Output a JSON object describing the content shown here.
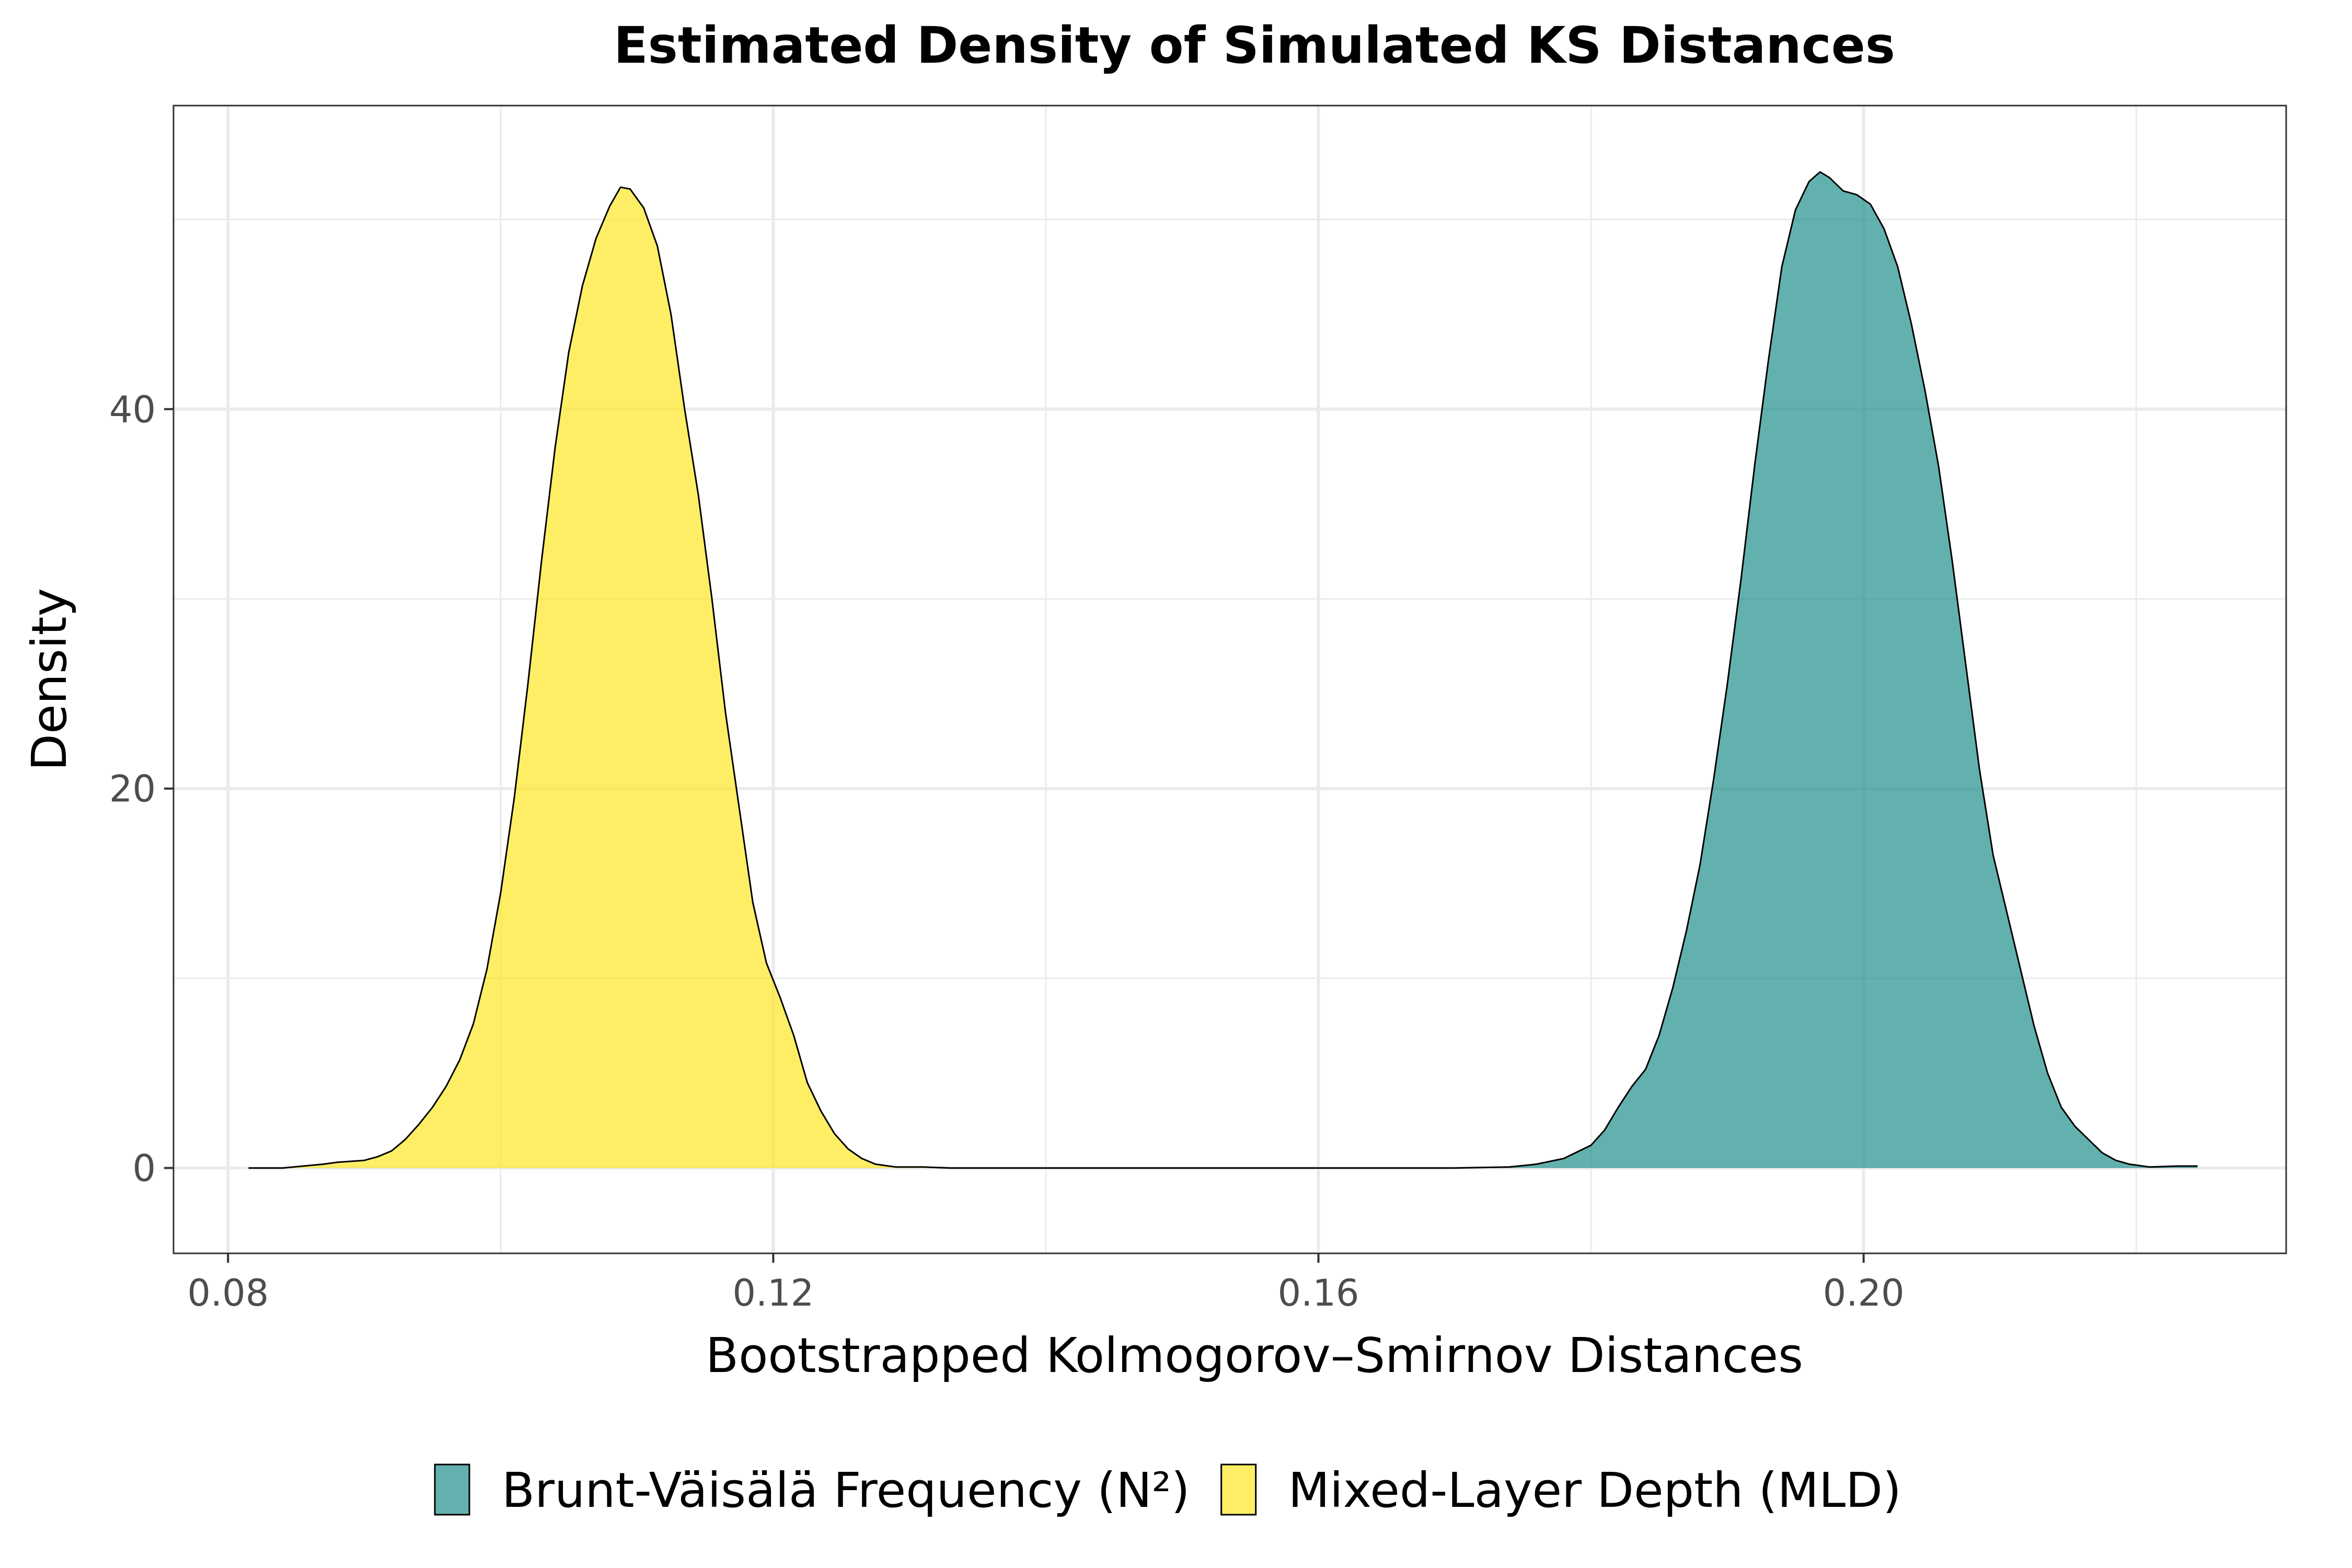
{
  "chart_data": {
    "type": "area",
    "title": "Estimated Density of Simulated KS Distances",
    "xlabel": "Bootstrapped Kolmogorov–Smirnov Distances",
    "ylabel": "Density",
    "xlim": [
      0.076,
      0.231
    ],
    "ylim": [
      -4.5,
      56
    ],
    "x_ticks": [
      0.08,
      0.12,
      0.16,
      0.2
    ],
    "x_tick_labels": [
      "0.08",
      "0.12",
      "0.16",
      "0.20"
    ],
    "y_ticks": [
      0,
      20,
      40
    ],
    "y_tick_labels": [
      "0",
      "20",
      "40"
    ],
    "grid": true,
    "legend_position": "bottom",
    "series": [
      {
        "name": "Brunt-Väisälä Frequency (N²)",
        "color": "#21908C",
        "opacity": 0.7,
        "points": [
          [
            0.17,
            0.0
          ],
          [
            0.174,
            0.05
          ],
          [
            0.176,
            0.2
          ],
          [
            0.178,
            0.5
          ],
          [
            0.18,
            1.2
          ],
          [
            0.181,
            2.0
          ],
          [
            0.182,
            3.2
          ],
          [
            0.183,
            4.3
          ],
          [
            0.184,
            5.2
          ],
          [
            0.185,
            7.0
          ],
          [
            0.186,
            9.5
          ],
          [
            0.187,
            12.5
          ],
          [
            0.188,
            16.0
          ],
          [
            0.189,
            20.5
          ],
          [
            0.19,
            25.5
          ],
          [
            0.191,
            31.0
          ],
          [
            0.192,
            37.0
          ],
          [
            0.193,
            42.5
          ],
          [
            0.194,
            47.5
          ],
          [
            0.195,
            50.5
          ],
          [
            0.196,
            52.0
          ],
          [
            0.1968,
            52.5
          ],
          [
            0.1975,
            52.2
          ],
          [
            0.1985,
            51.5
          ],
          [
            0.1995,
            51.3
          ],
          [
            0.2005,
            50.8
          ],
          [
            0.2015,
            49.5
          ],
          [
            0.2025,
            47.5
          ],
          [
            0.2035,
            44.5
          ],
          [
            0.2045,
            41.0
          ],
          [
            0.2055,
            37.0
          ],
          [
            0.2065,
            32.0
          ],
          [
            0.2075,
            26.5
          ],
          [
            0.2085,
            21.0
          ],
          [
            0.2095,
            16.5
          ],
          [
            0.2105,
            13.5
          ],
          [
            0.2115,
            10.5
          ],
          [
            0.2125,
            7.5
          ],
          [
            0.2135,
            5.0
          ],
          [
            0.2145,
            3.2
          ],
          [
            0.2155,
            2.2
          ],
          [
            0.2165,
            1.5
          ],
          [
            0.2175,
            0.8
          ],
          [
            0.2185,
            0.4
          ],
          [
            0.2195,
            0.2
          ],
          [
            0.221,
            0.05
          ],
          [
            0.223,
            0.1
          ],
          [
            0.2245,
            0.1
          ]
        ]
      },
      {
        "name": "Mixed-Layer Depth (MLD)",
        "color": "#FDE725",
        "opacity": 0.7,
        "points": [
          [
            0.0815,
            0.0
          ],
          [
            0.084,
            0.0
          ],
          [
            0.0855,
            0.1
          ],
          [
            0.087,
            0.2
          ],
          [
            0.088,
            0.3
          ],
          [
            0.09,
            0.4
          ],
          [
            0.091,
            0.6
          ],
          [
            0.092,
            0.9
          ],
          [
            0.093,
            1.5
          ],
          [
            0.094,
            2.3
          ],
          [
            0.095,
            3.2
          ],
          [
            0.096,
            4.3
          ],
          [
            0.097,
            5.7
          ],
          [
            0.098,
            7.6
          ],
          [
            0.099,
            10.5
          ],
          [
            0.1,
            14.5
          ],
          [
            0.101,
            19.5
          ],
          [
            0.102,
            25.5
          ],
          [
            0.103,
            32.0
          ],
          [
            0.104,
            38.0
          ],
          [
            0.105,
            43.0
          ],
          [
            0.106,
            46.5
          ],
          [
            0.107,
            49.0
          ],
          [
            0.108,
            50.7
          ],
          [
            0.1088,
            51.7
          ],
          [
            0.1095,
            51.6
          ],
          [
            0.1105,
            50.6
          ],
          [
            0.1115,
            48.6
          ],
          [
            0.1125,
            45.0
          ],
          [
            0.1135,
            40.0
          ],
          [
            0.1145,
            35.5
          ],
          [
            0.1155,
            30.0
          ],
          [
            0.1165,
            24.0
          ],
          [
            0.1175,
            19.0
          ],
          [
            0.1185,
            14.0
          ],
          [
            0.1195,
            10.8
          ],
          [
            0.1205,
            9.0
          ],
          [
            0.1215,
            7.0
          ],
          [
            0.1225,
            4.5
          ],
          [
            0.1235,
            3.0
          ],
          [
            0.1245,
            1.8
          ],
          [
            0.1255,
            1.0
          ],
          [
            0.1265,
            0.5
          ],
          [
            0.1275,
            0.2
          ],
          [
            0.129,
            0.05
          ],
          [
            0.131,
            0.05
          ],
          [
            0.133,
            0.0
          ],
          [
            0.17,
            0.0
          ]
        ]
      }
    ]
  }
}
